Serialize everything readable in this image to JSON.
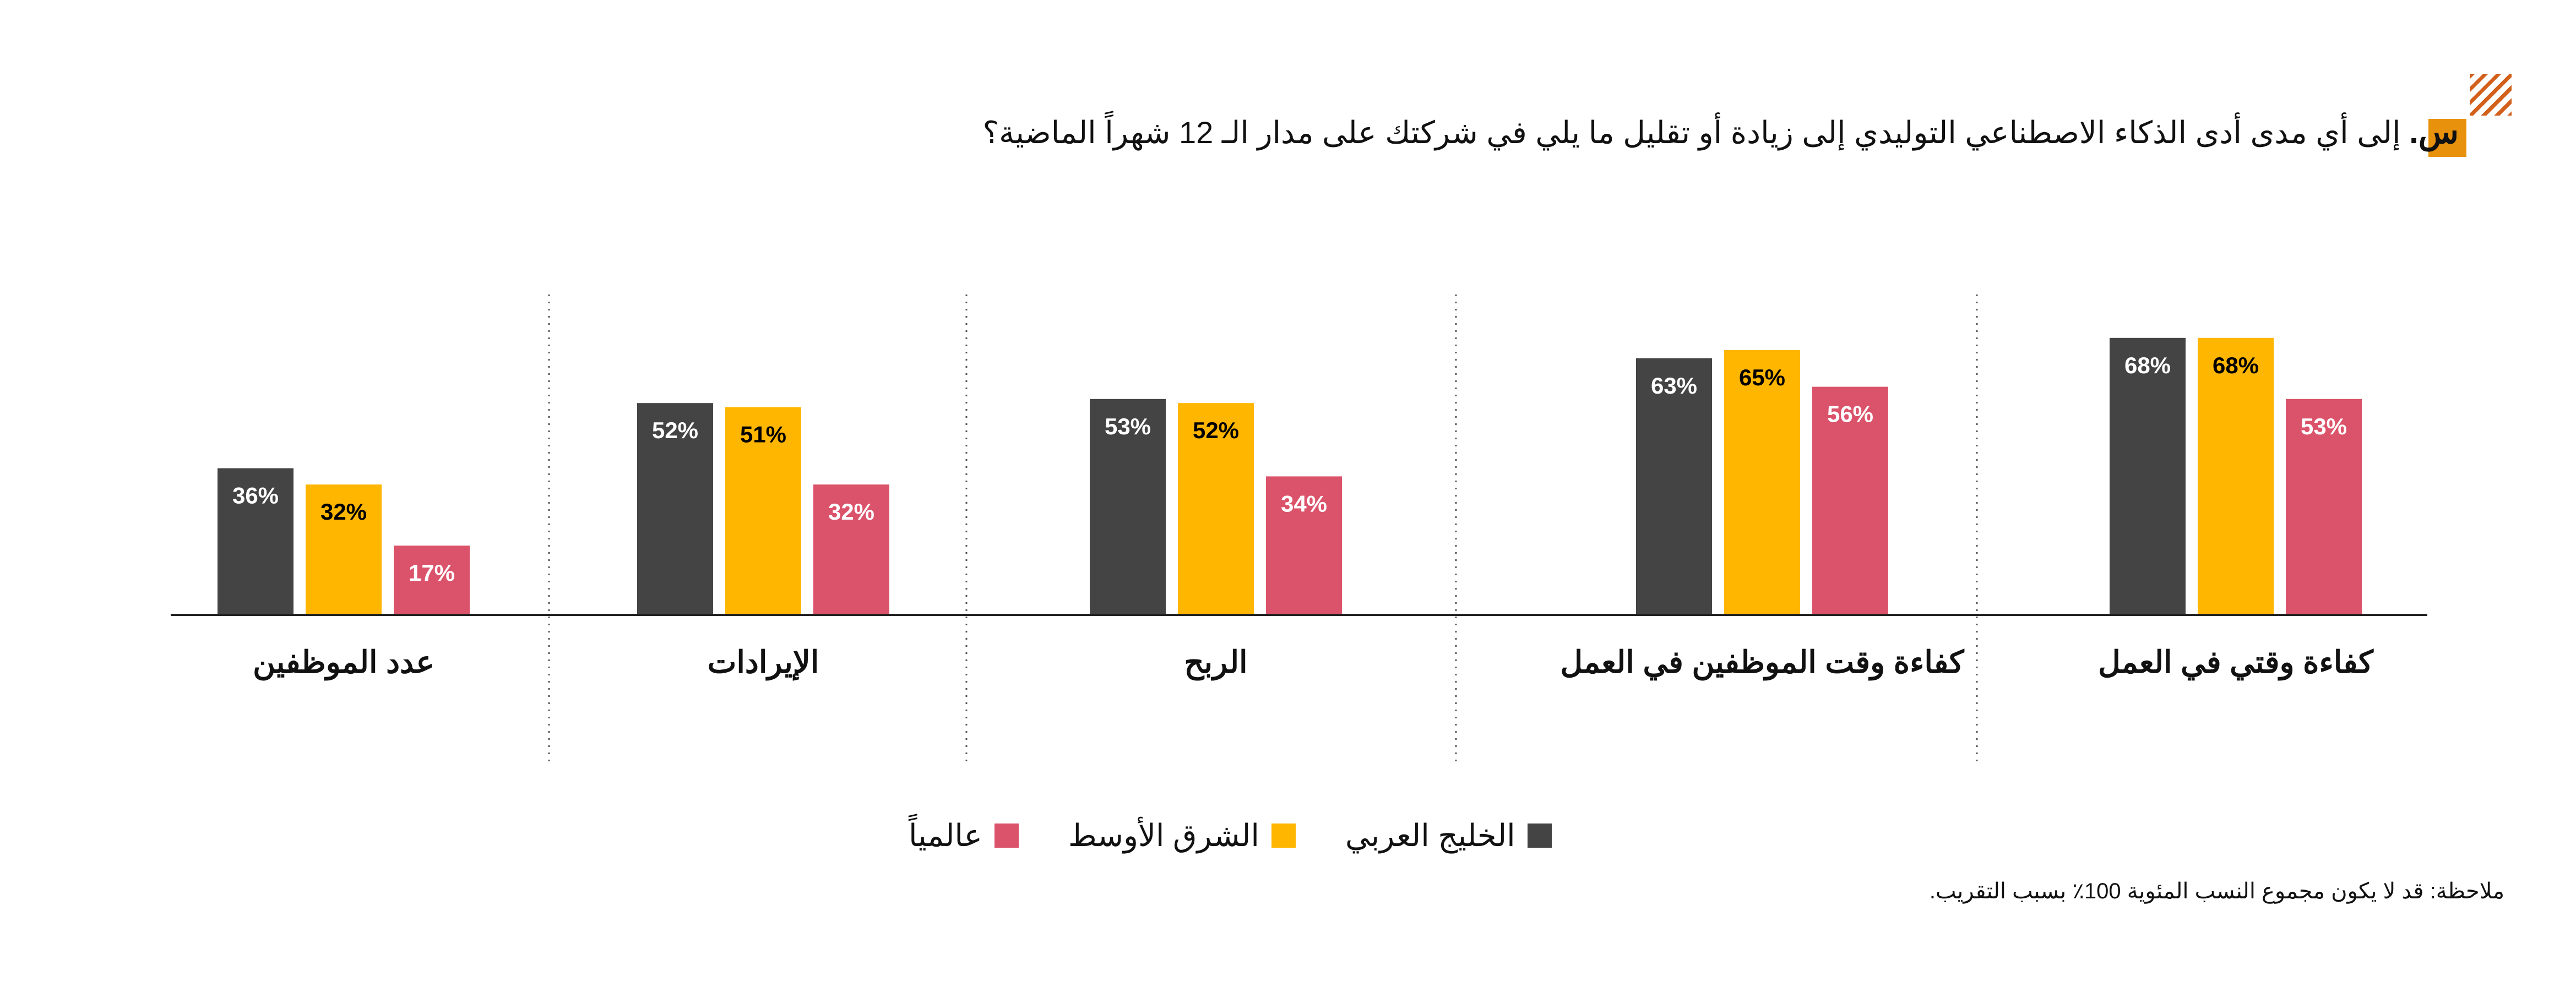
{
  "header": {
    "question_prefix": "س.",
    "question_text": "إلى أي مدى أدى الذكاء الاصطناعي التوليدي إلى زيادة أو تقليل ما يلي في شركتك على مدار الـ 12 شهراً الماضية؟"
  },
  "colors": {
    "gulf": "#444444",
    "middle_east": "#ffb600",
    "global": "#db536a",
    "header_square": "#e8910c",
    "header_hatch": "#d2601a"
  },
  "legend": {
    "gulf": "الخليج العربي",
    "middle_east": "الشرق الأوسط",
    "global": "عالمياً"
  },
  "note": "ملاحظة: قد لا يكون مجموع النسب المئوية 100٪ بسبب التقريب.",
  "chart_data": {
    "type": "bar",
    "title": "",
    "xlabel": "",
    "ylabel": "",
    "ylim": [
      0,
      80
    ],
    "grid": false,
    "legend_position": "bottom",
    "categories": [
      "كفاءة وقتي في العمل",
      "كفاءة وقت الموظفين في العمل",
      "الربح",
      "الإيرادات",
      "عدد الموظفين"
    ],
    "series": [
      {
        "name": "الخليج العربي",
        "color": "#444444",
        "values": [
          68,
          63,
          53,
          52,
          36
        ]
      },
      {
        "name": "الشرق الأوسط",
        "color": "#ffb600",
        "values": [
          68,
          65,
          52,
          51,
          32
        ]
      },
      {
        "name": "عالمياً",
        "color": "#db536a",
        "values": [
          53,
          56,
          34,
          32,
          17
        ]
      }
    ],
    "value_suffix": "%"
  }
}
